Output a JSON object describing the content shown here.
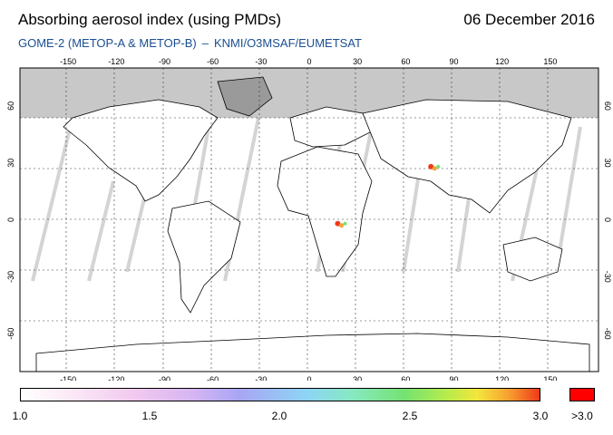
{
  "header": {
    "title": "Absorbing aerosol index (using PMDs)",
    "date": "06 December 2016",
    "subtitle_instrument": "GOME-2 (METOP-A & METOP-B)",
    "subtitle_separator": "–",
    "subtitle_source": "KNMI/O3MSAF/EUMETSAT"
  },
  "map": {
    "lon_ticks": [
      "-150",
      "-120",
      "-90",
      "-60",
      "-30",
      "0",
      "30",
      "60",
      "90",
      "120",
      "150"
    ],
    "lat_ticks_left": [
      "60",
      "30",
      "0",
      "-30",
      "-60"
    ],
    "lat_ticks_right": [
      "60",
      "30",
      "0",
      "-30",
      "-60"
    ],
    "lon_values": [
      -150,
      -120,
      -90,
      -60,
      -30,
      0,
      30,
      60,
      90,
      120,
      150
    ],
    "lat_values": [
      60,
      30,
      0,
      -30,
      -60
    ],
    "no_data_color": "#d0d0d0",
    "polar_mask_color": "#c8c8c8",
    "grid": true,
    "plumes": [
      {
        "region": "central-africa",
        "lon": 20,
        "lat": -2,
        "level": 3.0
      },
      {
        "region": "northern-india",
        "lon": 78,
        "lat": 28,
        "level": 3.0
      }
    ]
  },
  "colorbar": {
    "labels": [
      "1.0",
      "1.5",
      "2.0",
      "2.5",
      "3.0"
    ],
    "overflow_label": ">3.0",
    "overflow_color": "#ff0000",
    "range": [
      1.0,
      3.0
    ]
  }
}
